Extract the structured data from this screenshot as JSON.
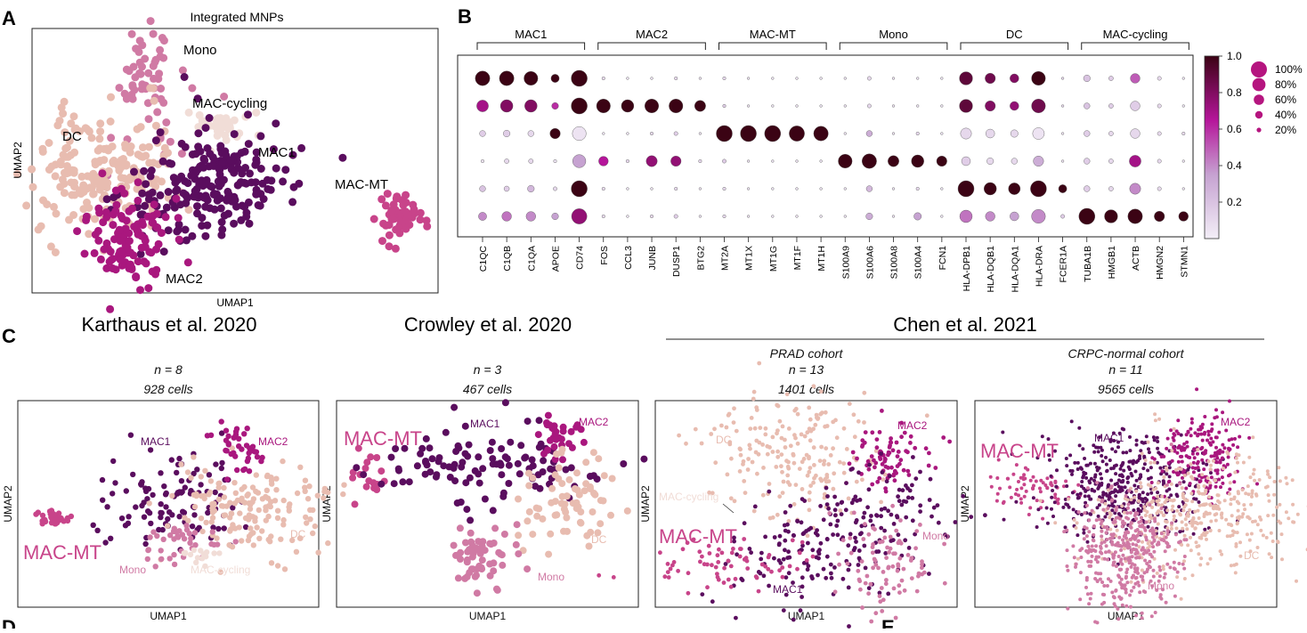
{
  "panel_letters": {
    "A": "A",
    "B": "B",
    "C": "C",
    "D": "D",
    "E": "E"
  },
  "colors": {
    "mono": "#d07aa4",
    "mac_cycling": "#f1ddd7",
    "dc": "#e8bcb0",
    "mac1": "#5a0d5e",
    "mac2": "#a9177e",
    "mac_mt": "#c8448a",
    "colorbar_low": "#f3eef7",
    "colorbar_mid": "#b5159a",
    "colorbar_high": "#3b0314"
  },
  "panel_a": {
    "title": "Integrated MNPs",
    "xlabel": "UMAP1",
    "ylabel": "UMAP2",
    "labels": {
      "mono": "Mono",
      "mac_cycling": "MAC-cycling",
      "dc": "DC",
      "mac1": "MAC1",
      "mac_mt": "MAC-MT",
      "mac2": "MAC2"
    }
  },
  "panel_b": {
    "groups": [
      "MAC1",
      "MAC2",
      "MAC-MT",
      "Mono",
      "DC",
      "MAC-cycling"
    ],
    "genes": [
      "C1QC",
      "C1QB",
      "C1QA",
      "APOE",
      "CD74",
      "FOS",
      "CCL3",
      "JUNB",
      "DUSP1",
      "BTG2",
      "MT2A",
      "MT1X",
      "MT1G",
      "MT1F",
      "MT1H",
      "S100A9",
      "S100A6",
      "S100A8",
      "S100A4",
      "FCN1",
      "HLA-DPB1",
      "HLA-DQB1",
      "HLA-DQA1",
      "HLA-DRA",
      "FCER1A",
      "TUBA1B",
      "HMGB1",
      "ACTB",
      "HMGN2",
      "STMN1"
    ],
    "colorbar_ticks": [
      "1.0",
      "0.8",
      "0.6",
      "0.4",
      "0.2"
    ],
    "size_legend": [
      "100%",
      "80%",
      "60%",
      "40%",
      "20%"
    ]
  },
  "chart_data": {
    "type": "dot",
    "rows": [
      "MAC1",
      "MAC2",
      "MAC-MT",
      "Mono",
      "DC",
      "MAC-cycling"
    ],
    "columns": [
      "C1QC",
      "C1QB",
      "C1QA",
      "APOE",
      "CD74",
      "FOS",
      "CCL3",
      "JUNB",
      "DUSP1",
      "BTG2",
      "MT2A",
      "MT1X",
      "MT1G",
      "MT1F",
      "MT1H",
      "S100A9",
      "S100A6",
      "S100A8",
      "S100A4",
      "FCN1",
      "HLA-DPB1",
      "HLA-DQB1",
      "HLA-DQA1",
      "HLA-DRA",
      "FCER1A",
      "TUBA1B",
      "HMGB1",
      "ACTB",
      "HMGN2",
      "STMN1"
    ],
    "fraction": [
      [
        0.9,
        0.9,
        0.85,
        0.45,
        1.0,
        0.1,
        0.05,
        0.05,
        0.1,
        0.05,
        0.1,
        0.05,
        0.05,
        0.05,
        0.05,
        0.05,
        0.15,
        0.05,
        0.05,
        0.05,
        0.8,
        0.6,
        0.5,
        0.85,
        0.05,
        0.35,
        0.2,
        0.55,
        0.15,
        0.05
      ],
      [
        0.7,
        0.75,
        0.75,
        0.35,
        1.0,
        0.85,
        0.75,
        0.85,
        0.85,
        0.65,
        0.1,
        0.05,
        0.05,
        0.05,
        0.05,
        0.05,
        0.15,
        0.05,
        0.05,
        0.05,
        0.8,
        0.6,
        0.5,
        0.85,
        0.05,
        0.3,
        0.2,
        0.55,
        0.15,
        0.05
      ],
      [
        0.3,
        0.35,
        0.3,
        0.6,
        0.85,
        0.05,
        0.05,
        0.1,
        0.15,
        0.05,
        1.0,
        1.0,
        1.0,
        0.95,
        0.9,
        0.05,
        0.3,
        0.05,
        0.1,
        0.05,
        0.65,
        0.5,
        0.4,
        0.7,
        0.05,
        0.3,
        0.2,
        0.55,
        0.15,
        0.1
      ],
      [
        0.1,
        0.2,
        0.2,
        0.1,
        0.8,
        0.55,
        0.1,
        0.65,
        0.6,
        0.1,
        0.15,
        0.05,
        0.05,
        0.05,
        0.05,
        0.85,
        0.9,
        0.65,
        0.75,
        0.6,
        0.5,
        0.35,
        0.3,
        0.6,
        0.05,
        0.3,
        0.2,
        0.7,
        0.15,
        0.05
      ],
      [
        0.3,
        0.25,
        0.35,
        0.15,
        1.0,
        0.1,
        0.05,
        0.05,
        0.1,
        0.05,
        0.1,
        0.05,
        0.05,
        0.05,
        0.05,
        0.05,
        0.3,
        0.05,
        0.1,
        0.05,
        1.0,
        0.75,
        0.7,
        1.0,
        0.45,
        0.3,
        0.2,
        0.65,
        0.15,
        0.05
      ],
      [
        0.45,
        0.55,
        0.55,
        0.35,
        0.95,
        0.1,
        0.05,
        0.1,
        0.15,
        0.05,
        0.1,
        0.05,
        0.05,
        0.05,
        0.05,
        0.05,
        0.35,
        0.05,
        0.4,
        0.05,
        0.75,
        0.55,
        0.5,
        0.85,
        0.15,
        1.0,
        0.8,
        0.9,
        0.6,
        0.55
      ]
    ],
    "expression": [
      [
        1.0,
        1.0,
        1.0,
        1.0,
        1.0,
        0.1,
        0.05,
        0.05,
        0.1,
        0.05,
        0.1,
        0.05,
        0.05,
        0.05,
        0.05,
        0.05,
        0.1,
        0.05,
        0.05,
        0.05,
        0.9,
        0.85,
        0.8,
        1.0,
        0.1,
        0.2,
        0.15,
        0.5,
        0.1,
        0.05
      ],
      [
        0.7,
        0.8,
        0.8,
        0.6,
        1.0,
        1.0,
        1.0,
        1.0,
        1.0,
        1.0,
        0.15,
        0.05,
        0.05,
        0.05,
        0.05,
        0.05,
        0.1,
        0.05,
        0.05,
        0.05,
        0.9,
        0.8,
        0.75,
        0.85,
        0.1,
        0.2,
        0.15,
        0.15,
        0.1,
        0.05
      ],
      [
        0.15,
        0.15,
        0.1,
        1.0,
        0.05,
        0.05,
        0.05,
        0.1,
        0.15,
        0.05,
        1.0,
        1.0,
        1.0,
        1.0,
        1.0,
        0.05,
        0.3,
        0.05,
        0.1,
        0.05,
        0.1,
        0.1,
        0.1,
        0.05,
        0.05,
        0.15,
        0.1,
        0.1,
        0.1,
        0.1
      ],
      [
        0.05,
        0.1,
        0.1,
        0.05,
        0.35,
        0.65,
        0.1,
        0.75,
        0.75,
        0.1,
        0.15,
        0.05,
        0.05,
        0.05,
        0.05,
        1.0,
        1.0,
        1.0,
        1.0,
        1.0,
        0.15,
        0.1,
        0.1,
        0.3,
        0.05,
        0.15,
        0.1,
        0.7,
        0.1,
        0.05
      ],
      [
        0.2,
        0.15,
        0.25,
        0.1,
        1.0,
        0.1,
        0.05,
        0.05,
        0.1,
        0.05,
        0.1,
        0.05,
        0.05,
        0.05,
        0.05,
        0.05,
        0.25,
        0.05,
        0.1,
        0.05,
        1.0,
        1.0,
        1.0,
        1.0,
        1.0,
        0.15,
        0.1,
        0.4,
        0.1,
        0.05
      ],
      [
        0.4,
        0.45,
        0.4,
        0.35,
        0.75,
        0.1,
        0.05,
        0.1,
        0.15,
        0.05,
        0.1,
        0.05,
        0.05,
        0.05,
        0.05,
        0.05,
        0.3,
        0.05,
        0.35,
        0.05,
        0.45,
        0.4,
        0.35,
        0.4,
        0.15,
        1.0,
        1.0,
        1.0,
        1.0,
        1.0
      ]
    ],
    "colorbar_range": [
      0,
      1.0
    ]
  },
  "panel_c": {
    "plots": [
      {
        "study": "Karthaus et al. 2020",
        "cohort": "",
        "n": "n = 8",
        "cells": "928 cells",
        "xlabel": "UMAP1",
        "ylabel": "UMAP2",
        "labels": {
          "mac1": "MAC1",
          "mac2": "MAC2",
          "mac_mt": "MAC-MT",
          "dc": "DC",
          "mono": "Mono",
          "mac_cycling": "MAC-cycling"
        }
      },
      {
        "study": "Crowley et al. 2020",
        "cohort": "",
        "n": "n = 3",
        "cells": "467 cells",
        "xlabel": "UMAP1",
        "ylabel": "UMAP2",
        "labels": {
          "mac1": "MAC1",
          "mac2": "MAC2",
          "mac_mt": "MAC-MT",
          "dc": "DC",
          "mono": "Mono"
        }
      },
      {
        "study": "",
        "cohort": "PRAD cohort",
        "n": "n = 13",
        "cells": "1401 cells",
        "xlabel": "UMAP1",
        "ylabel": "UMAP2",
        "labels": {
          "mac1": "MAC1",
          "mac2": "MAC2",
          "mac_mt": "MAC-MT",
          "dc": "DC",
          "mono": "Mono",
          "mac_cycling": "MAC-cycling"
        }
      },
      {
        "study": "",
        "cohort": "CRPC-normal cohort",
        "n": "n = 11",
        "cells": "9565 cells",
        "xlabel": "UMAP1",
        "ylabel": "UMAP2",
        "labels": {
          "mac1": "MAC1",
          "mac2": "MAC2",
          "mac_mt": "MAC-MT",
          "dc": "DC",
          "mono": "Mono"
        }
      }
    ],
    "chen_title": "Chen et al. 2021"
  }
}
